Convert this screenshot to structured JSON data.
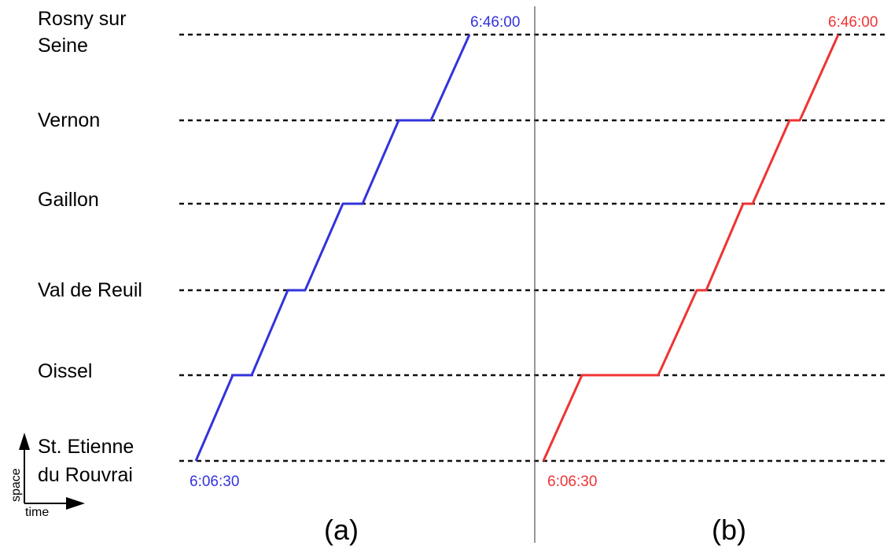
{
  "stations": [
    {
      "id": "rosny",
      "lines": [
        "Rosny sur",
        "Seine"
      ]
    },
    {
      "id": "vernon",
      "lines": [
        "Vernon"
      ]
    },
    {
      "id": "gaillon",
      "lines": [
        "Gaillon"
      ]
    },
    {
      "id": "val-de-reuil",
      "lines": [
        "Val de Reuil"
      ]
    },
    {
      "id": "oissel",
      "lines": [
        "Oissel"
      ]
    },
    {
      "id": "st-etienne",
      "lines": [
        "St. Etienne",
        "du Rouvrai"
      ]
    }
  ],
  "axes": {
    "space_label": "space",
    "time_label": "time"
  },
  "panels": [
    {
      "id": "a",
      "caption": "(a)",
      "color": "#3333dd",
      "start_time": "6:06:30",
      "end_time": "6:46:00"
    },
    {
      "id": "b",
      "caption": "(b)",
      "color": "#ee3333",
      "start_time": "6:06:30",
      "end_time": "6:46:00"
    }
  ]
}
